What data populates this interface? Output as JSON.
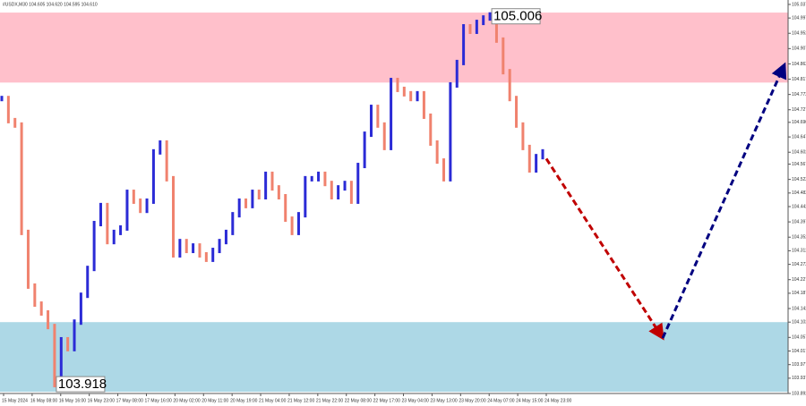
{
  "chart_data": {
    "type": "bar-series",
    "title": "#USDX,M30  104.605 104.620 104.595 104.610",
    "ylim": [
      103.892,
      105.05
    ],
    "yticks": [
      105.037,
      104.997,
      104.952,
      104.907,
      104.862,
      104.817,
      104.772,
      104.727,
      {
        "value": 104.69,
        "label": "104.690"
      },
      104.647,
      104.602,
      104.567,
      104.522,
      104.482,
      104.442,
      104.397,
      104.352,
      104.312,
      104.272,
      104.227,
      104.187,
      104.142,
      104.102,
      104.057,
      104.017,
      103.977,
      103.937,
      103.892
    ],
    "x_labels": [
      "15 May 2024",
      "16 May 08:00",
      "16 May 16:00",
      "16 May 23:00",
      "17 May 08:00",
      "17 May 16:00",
      "20 May 02:00",
      "20 May 11:00",
      "20 May 19:00",
      "21 May 04:00",
      "21 May 12:00",
      "21 May 22:00",
      "22 May 08:00",
      "22 May 17:00",
      "23 May 04:00",
      "23 May 13:00",
      "23 May 20:00",
      "24 May 07:00",
      "24 May 15:00",
      "24 May 23:00"
    ],
    "up_color": "#2b2bd6",
    "down_color": "#f0826e",
    "values": [
      104.76,
      104.695,
      104.682,
      104.366,
      104.208,
      104.155,
      104.129,
      104.089,
      103.918,
      104.05,
      104.024,
      104.102,
      104.181,
      104.26,
      104.392,
      104.445,
      104.339,
      104.366,
      104.379,
      104.484,
      104.458,
      104.431,
      104.458,
      104.603,
      104.629,
      104.524,
      104.3,
      104.339,
      104.313,
      104.326,
      104.3,
      104.287,
      104.313,
      104.339,
      104.366,
      104.418,
      104.458,
      104.445,
      104.484,
      104.471,
      104.537,
      104.497,
      104.471,
      104.405,
      104.366,
      104.418,
      104.524,
      104.524,
      104.537,
      104.51,
      104.471,
      104.497,
      104.51,
      104.458,
      104.563,
      104.655,
      104.734,
      104.682,
      104.616,
      104.813,
      104.787,
      104.774,
      104.76,
      104.774,
      104.708,
      104.629,
      104.576,
      104.524,
      104.8,
      104.866,
      104.971,
      104.958,
      104.984,
      104.997,
      105.006,
      104.932,
      104.839,
      104.76,
      104.682,
      104.616,
      104.55,
      104.589,
      104.603
    ],
    "zones": [
      {
        "from": 104.807,
        "to": 105.013,
        "color": "#ffc0cb"
      },
      {
        "from": 103.897,
        "to": 104.102,
        "color": "#add8e6"
      }
    ],
    "annotations": [
      105.006,
      103.918
    ],
    "forecast": {
      "values": [
        104.583,
        104.055,
        104.86
      ],
      "colors": [
        "#c00000",
        "#000080"
      ]
    }
  }
}
